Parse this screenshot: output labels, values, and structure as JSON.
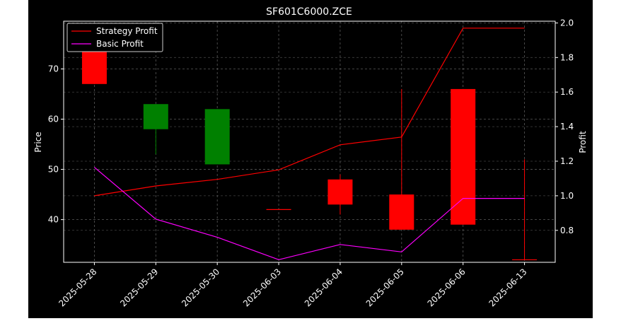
{
  "chart_data": {
    "type": "candlestick",
    "title": "SF601C6000.ZCE",
    "xlabel": "",
    "ylabel": "Price",
    "y2label": "Profit",
    "categories": [
      "2025-05-28",
      "2025-05-29",
      "2025-05-30",
      "2025-06-03",
      "2025-06-04",
      "2025-06-05",
      "2025-06-06",
      "2025-06-13"
    ],
    "ylim": [
      31.5,
      79.5
    ],
    "y2lim": [
      0.615,
      2.01
    ],
    "yticks": [
      40,
      50,
      60,
      70
    ],
    "y2ticks": [
      0.8,
      1.0,
      1.2,
      1.4,
      1.6,
      1.8,
      2.0
    ],
    "ytick_labels": [
      "40",
      "50",
      "60",
      "70"
    ],
    "y2tick_labels": [
      "0.8",
      "1.0",
      "1.2",
      "1.4",
      "1.6",
      "1.8",
      "2.0"
    ],
    "candles": [
      {
        "date": "2025-05-28",
        "open": 67,
        "high": 78.5,
        "low": 67,
        "close": 78.5,
        "color": "red"
      },
      {
        "date": "2025-05-29",
        "open": 58,
        "high": 63,
        "low": 53,
        "close": 63,
        "color": "green"
      },
      {
        "date": "2025-05-30",
        "open": 51,
        "high": 62,
        "low": 51,
        "close": 62,
        "color": "green"
      },
      {
        "date": "2025-06-03",
        "open": 42,
        "high": 42,
        "low": 42,
        "close": 42,
        "color": "red"
      },
      {
        "date": "2025-06-04",
        "open": 43,
        "high": 49,
        "low": 41,
        "close": 48,
        "color": "red"
      },
      {
        "date": "2025-06-05",
        "open": 38,
        "high": 66,
        "low": 38,
        "close": 45,
        "color": "red"
      },
      {
        "date": "2025-06-06",
        "open": 39,
        "high": 66,
        "low": 39,
        "close": 66,
        "color": "red"
      },
      {
        "date": "2025-06-13",
        "open": 32,
        "high": 52,
        "low": 32,
        "close": 32,
        "color": "red"
      }
    ],
    "series": [
      {
        "name": "Strategy Profit",
        "axis": "right",
        "color": "#ff0000",
        "values": [
          1.0,
          1.057,
          1.095,
          1.15,
          1.295,
          1.34,
          1.97,
          1.97
        ]
      },
      {
        "name": "Basic Profit",
        "axis": "right",
        "color": "#ff00ff",
        "values": [
          1.165,
          0.865,
          0.76,
          0.63,
          0.718,
          0.675,
          0.985,
          0.985
        ]
      }
    ],
    "legend_position": "top-left",
    "grid": true,
    "colors": {
      "background": "#000000",
      "up": "#ff0000",
      "down": "#008000",
      "text": "#ffffff",
      "grid": "#808080"
    }
  }
}
